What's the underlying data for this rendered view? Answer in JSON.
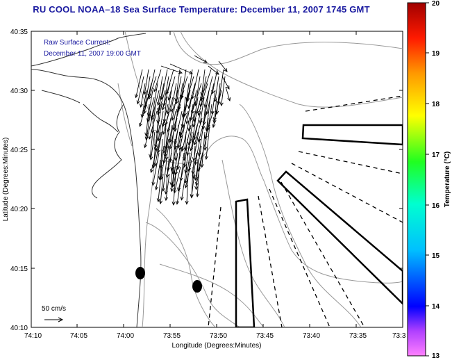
{
  "title": "RU COOL  NOAA–18  Sea Surface Temperature:  December 11, 2007 1745 GMT",
  "annotation": {
    "line1": "Raw Surface Current:",
    "line2": "December 11, 2007 19:00 GMT"
  },
  "axes": {
    "xlabel": "Longitude (Degrees:Minutes)",
    "ylabel": "Latitude (Degrees:Minutes)",
    "x_ticks": [
      "74:10",
      "74:05",
      "74:00",
      "73:55",
      "73:50",
      "73:45",
      "73:40",
      "73:35",
      "73:3"
    ],
    "y_ticks": [
      "40:35",
      "40:30",
      "40:25",
      "40:20",
      "40:15",
      "40:10"
    ]
  },
  "scale_label": "50 cm/s",
  "colorbar": {
    "label": "Temperature (°C)",
    "ticks": [
      "20",
      "19",
      "18",
      "17",
      "16",
      "15",
      "14",
      "13"
    ],
    "min": 13,
    "max": 20
  },
  "colors": {
    "title": "#1a1aa0",
    "bathymetry": "#999999",
    "coast": "#333333"
  }
}
